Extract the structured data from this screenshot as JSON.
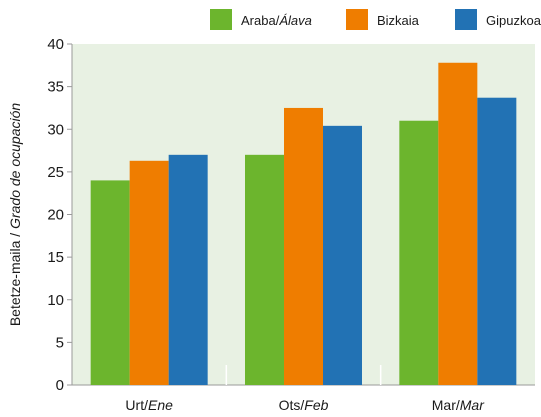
{
  "chart_data": {
    "type": "bar",
    "categories": [
      {
        "main": "Urt/",
        "alt": "Ene"
      },
      {
        "main": "Ots/",
        "alt": "Feb"
      },
      {
        "main": "Mar/",
        "alt": "Mar"
      }
    ],
    "series": [
      {
        "name": {
          "main": "Araba/",
          "alt": "Álava"
        },
        "color": "#6cb52d",
        "values": [
          24.0,
          27.0,
          31.0
        ]
      },
      {
        "name": {
          "main": "Bizkaia",
          "alt": ""
        },
        "color": "#ef7d00",
        "values": [
          26.3,
          32.5,
          37.8
        ]
      },
      {
        "name": {
          "main": "Gipuzkoa",
          "alt": ""
        },
        "color": "#2272b4",
        "values": [
          27.0,
          30.4,
          33.7
        ]
      }
    ],
    "ylabel": {
      "main": "Betetze-maila / ",
      "alt": "Grado de ocupación"
    },
    "ylim": [
      0,
      40
    ],
    "yticks": [
      "0",
      "5",
      "10",
      "15",
      "20",
      "25",
      "30",
      "35",
      "40"
    ],
    "legend_position": "top-right",
    "grid": false,
    "plot_background": "#e8f1e3"
  }
}
